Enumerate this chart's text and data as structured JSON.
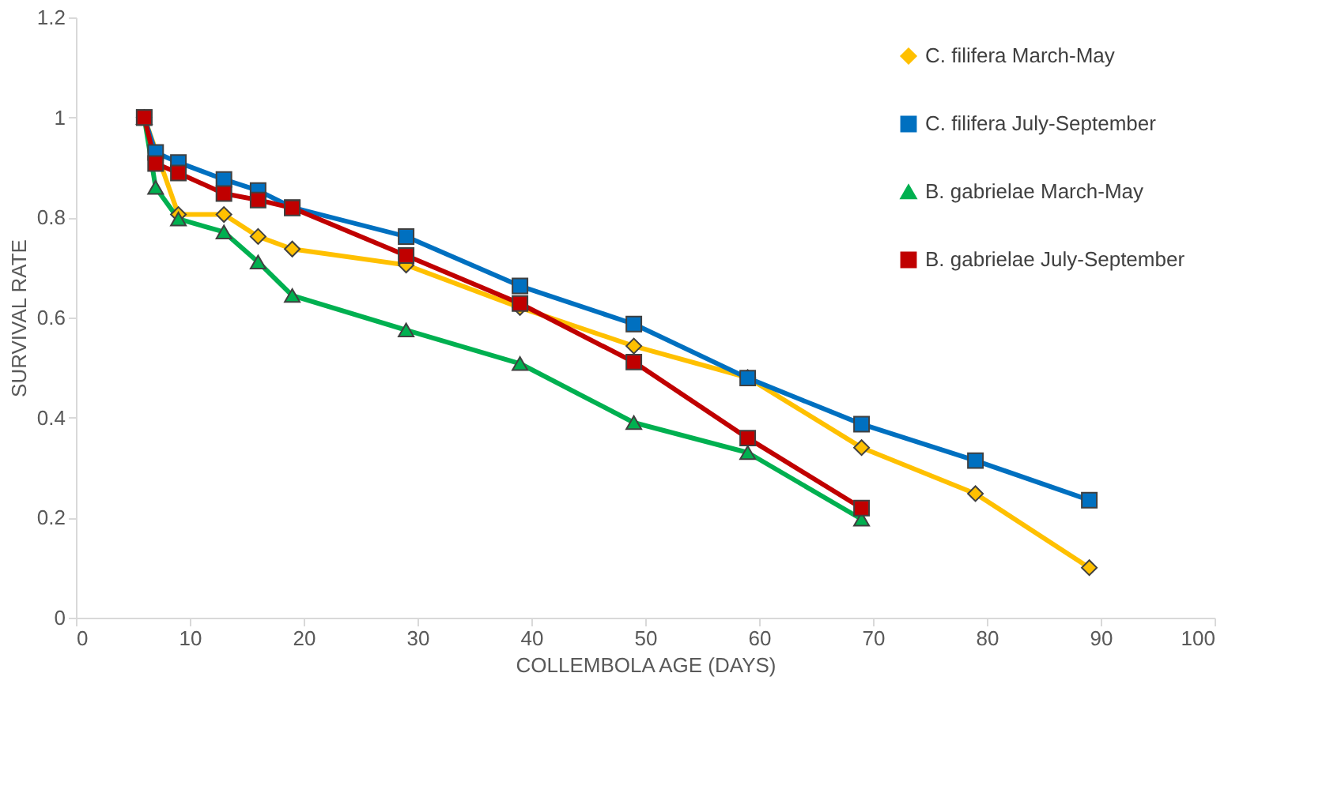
{
  "chart_data": {
    "type": "line",
    "xlabel": "COLLEMBOLA AGE (DAYS)",
    "ylabel": "SURVIVAL RATE",
    "xlim": [
      0,
      100
    ],
    "xticks": [
      0,
      10,
      20,
      30,
      40,
      50,
      60,
      70,
      80,
      90,
      100
    ],
    "ylim": [
      0,
      1.2
    ],
    "yticks": [
      0,
      0.2,
      0.4,
      0.6,
      0.8,
      1,
      1.2
    ],
    "grid": false,
    "legend": "top right",
    "line_style": "solid",
    "series": [
      {
        "name": "C. filifera March-May",
        "color": "#ffc000",
        "marker": "diamond",
        "x": [
          6,
          9,
          13,
          16,
          19,
          29,
          39,
          49,
          59,
          69,
          79,
          89
        ],
        "values": [
          1.0,
          0.806,
          0.806,
          0.762,
          0.737,
          0.705,
          0.62,
          0.543,
          0.48,
          0.34,
          0.248,
          0.1
        ]
      },
      {
        "name": "C. filifera July-September",
        "color": "#0070c0",
        "marker": "square",
        "x": [
          6,
          7,
          9,
          13,
          16,
          19,
          29,
          39,
          49,
          59,
          69,
          79,
          89
        ],
        "values": [
          1.0,
          0.93,
          0.91,
          0.876,
          0.854,
          0.82,
          0.762,
          0.663,
          0.587,
          0.479,
          0.387,
          0.314,
          0.235
        ]
      },
      {
        "name": "B. gabrielae March-May",
        "color": "#00b050",
        "marker": "triangle",
        "x": [
          6,
          7,
          9,
          13,
          16,
          19,
          29,
          39,
          49,
          59,
          69
        ],
        "values": [
          1.0,
          0.86,
          0.797,
          0.771,
          0.711,
          0.644,
          0.575,
          0.508,
          0.39,
          0.33,
          0.197
        ]
      },
      {
        "name": "B. gabrielae July-September",
        "color": "#c00000",
        "marker": "square",
        "x": [
          6,
          7,
          9,
          13,
          16,
          19,
          29,
          39,
          49,
          59,
          69
        ],
        "values": [
          1.0,
          0.908,
          0.889,
          0.848,
          0.835,
          0.819,
          0.724,
          0.628,
          0.511,
          0.359,
          0.219
        ]
      }
    ]
  }
}
